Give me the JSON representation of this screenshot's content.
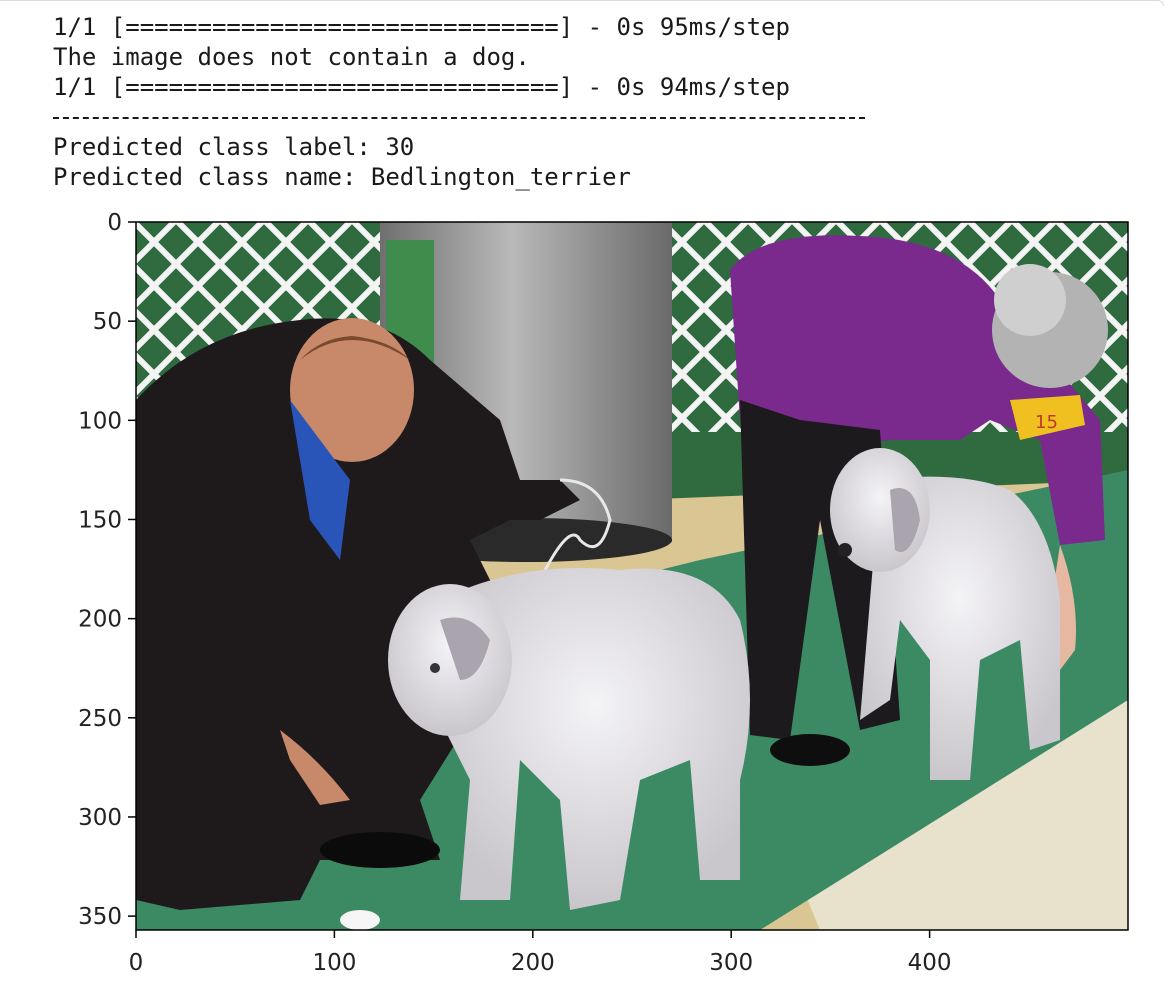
{
  "console": {
    "lines": [
      "1/1 [==============================] - 0s 95ms/step",
      "The image does not contain a dog.",
      "1/1 [==============================] - 0s 94ms/step",
      "",
      "Predicted class label: 30",
      "Predicted class name: Bedlington_terrier"
    ]
  },
  "plot": {
    "image_description_icon": "dog-show-photo",
    "x_ticks": [
      "0",
      "100",
      "200",
      "300",
      "400"
    ],
    "y_ticks": [
      "0",
      "50",
      "100",
      "150",
      "200",
      "250",
      "300",
      "350"
    ],
    "xlim": [
      0,
      500
    ],
    "ylim": [
      357,
      0
    ],
    "colors": {
      "carpet": "#3c8a64",
      "fence": "#f2f2f2",
      "pillar": "#9a9a9a",
      "jacket_woman": "#7a2a8c",
      "suit_man": "#1e1a1c",
      "dog": "#e4e2e6",
      "floor": "#d8c28a"
    },
    "badge_text": "15"
  }
}
